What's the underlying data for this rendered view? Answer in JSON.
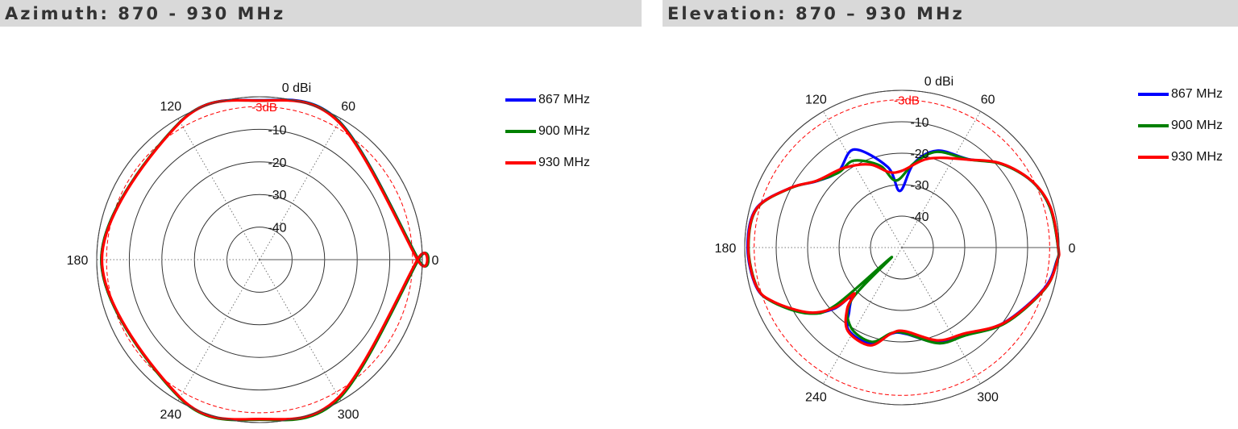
{
  "headers": {
    "left": "Azimuth: 870 - 930 MHz",
    "right": "Elevation: 870 – 930 MHz"
  },
  "chart_data": [
    {
      "type": "polar-line",
      "title": "Azimuth: 870 - 930 MHz",
      "radial_unit_label": "0 dBi",
      "radial_ticks": [
        "-10",
        "-20",
        "-30",
        "-40"
      ],
      "radial_range_db": [
        -50,
        0
      ],
      "reference_ring": {
        "value_db": -3,
        "label": "-3dB",
        "color": "#ff0000"
      },
      "angle_ticks": [
        "0",
        "60",
        "120",
        "180",
        "240",
        "300"
      ],
      "legend_position": "right",
      "series": [
        {
          "name": "867 MHz",
          "color": "#0000ff",
          "points": [
            [
              0,
              -1.2
            ],
            [
              60,
              -1.0
            ],
            [
              90,
              -1.1
            ],
            [
              120,
              -1.2
            ],
            [
              180,
              -1.4
            ],
            [
              240,
              -1.1
            ],
            [
              270,
              -1.0
            ],
            [
              300,
              -1.0
            ],
            [
              360,
              -1.2
            ]
          ]
        },
        {
          "name": "900 MHz",
          "color": "#008000",
          "points": [
            [
              0,
              -1.2
            ],
            [
              60,
              -1.1
            ],
            [
              90,
              -1.2
            ],
            [
              120,
              -1.2
            ],
            [
              180,
              -1.4
            ],
            [
              240,
              -1.0
            ],
            [
              270,
              -0.9
            ],
            [
              300,
              -0.9
            ],
            [
              360,
              -1.2
            ]
          ]
        },
        {
          "name": "930 MHz",
          "color": "#ff0000",
          "points": [
            [
              0,
              -1.5
            ],
            [
              60,
              -1.3
            ],
            [
              90,
              -1.2
            ],
            [
              120,
              -1.3
            ],
            [
              180,
              -1.6
            ],
            [
              240,
              -1.2
            ],
            [
              270,
              -1.1
            ],
            [
              300,
              -1.3
            ],
            [
              360,
              -1.5
            ]
          ]
        }
      ]
    },
    {
      "type": "polar-line",
      "title": "Elevation: 870 – 930 MHz",
      "radial_unit_label": "0 dBi",
      "radial_ticks": [
        "-10",
        "-20",
        "-30",
        "-40"
      ],
      "radial_range_db": [
        -50,
        0
      ],
      "reference_ring": {
        "value_db": -3,
        "label": "-3dB",
        "color": "#ff0000"
      },
      "angle_ticks": [
        "0",
        "60",
        "120",
        "180",
        "240",
        "300"
      ],
      "legend_position": "right",
      "series": [
        {
          "name": "867 MHz",
          "color": "#0000ff",
          "points": [
            [
              0,
              -0.3
            ],
            [
              15,
              -1.2
            ],
            [
              27,
              -3.6
            ],
            [
              40,
              -8.6
            ],
            [
              53,
              -14.8
            ],
            [
              70,
              -17.2
            ],
            [
              82,
              -23
            ],
            [
              92,
              -32
            ],
            [
              100,
              -24
            ],
            [
              116,
              -15.3
            ],
            [
              130,
              -18.5
            ],
            [
              142,
              -15.7
            ],
            [
              152,
              -9.7
            ],
            [
              165,
              -2.0
            ],
            [
              180,
              -0.9
            ],
            [
              195,
              -2.0
            ],
            [
              203,
              -5.6
            ],
            [
              215,
              -13.6
            ],
            [
              222,
              -21
            ],
            [
              224,
              -27
            ],
            [
              230,
              -24
            ],
            [
              237,
              -18.8
            ],
            [
              252,
              -17.8
            ],
            [
              263,
              -22.4
            ],
            [
              272,
              -22.6
            ],
            [
              291,
              -17.6
            ],
            [
              306,
              -15.8
            ],
            [
              324,
              -9.6
            ],
            [
              344,
              -2.9
            ],
            [
              355,
              -0.6
            ]
          ]
        },
        {
          "name": "900 MHz",
          "color": "#008000",
          "points": [
            [
              0,
              -0.3
            ],
            [
              15,
              -1.2
            ],
            [
              27,
              -3.6
            ],
            [
              40,
              -8.7
            ],
            [
              53,
              -14.9
            ],
            [
              70,
              -17.6
            ],
            [
              82,
              -23
            ],
            [
              95,
              -28.6
            ],
            [
              105,
              -23
            ],
            [
              119,
              -18.4
            ],
            [
              130,
              -18.8
            ],
            [
              142,
              -15.6
            ],
            [
              152,
              -9.8
            ],
            [
              165,
              -2.2
            ],
            [
              180,
              -1.2
            ],
            [
              195,
              -2.2
            ],
            [
              203,
              -5.5
            ],
            [
              215,
              -13.5
            ],
            [
              221,
              -22
            ],
            [
              223,
              -45.6
            ],
            [
              226,
              -27
            ],
            [
              237,
              -20
            ],
            [
              252,
              -18.5
            ],
            [
              263,
              -22.6
            ],
            [
              272,
              -22.8
            ],
            [
              291,
              -17.4
            ],
            [
              306,
              -15.5
            ],
            [
              324,
              -9.2
            ],
            [
              344,
              -2.6
            ],
            [
              355,
              -0.5
            ]
          ]
        },
        {
          "name": "930 MHz",
          "color": "#ff0000",
          "points": [
            [
              0,
              -0.2
            ],
            [
              15,
              -1.0
            ],
            [
              27,
              -3.5
            ],
            [
              40,
              -8.5
            ],
            [
              53,
              -15
            ],
            [
              73,
              -20.4
            ],
            [
              90,
              -25.6
            ],
            [
              100,
              -25.6
            ],
            [
              111,
              -21.7
            ],
            [
              126,
              -18.7
            ],
            [
              142,
              -15.5
            ],
            [
              152,
              -9.7
            ],
            [
              165,
              -2.1
            ],
            [
              180,
              -1.1
            ],
            [
              195,
              -2.1
            ],
            [
              203,
              -5.8
            ],
            [
              215,
              -14
            ],
            [
              222,
              -21.7
            ],
            [
              224,
              -29
            ],
            [
              228,
              -24
            ],
            [
              237,
              -18.4
            ],
            [
              252,
              -17.3
            ],
            [
              263,
              -22.5
            ],
            [
              272,
              -23.4
            ],
            [
              291,
              -18.4
            ],
            [
              306,
              -16.2
            ],
            [
              324,
              -9.5
            ],
            [
              344,
              -2.7
            ],
            [
              355,
              -0.4
            ]
          ]
        }
      ]
    }
  ]
}
